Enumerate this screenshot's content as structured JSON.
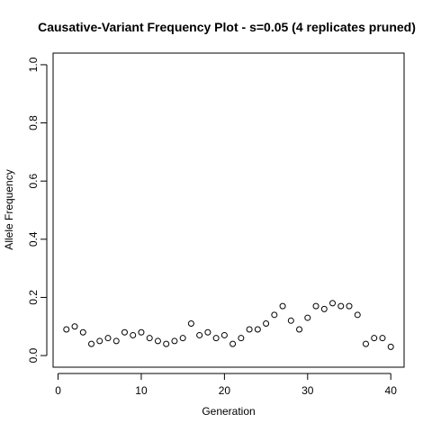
{
  "chart_data": {
    "type": "scatter",
    "title": "Causative-Variant Frequency Plot - s=0.05 (4 replicates pruned)",
    "xlabel": "Generation",
    "ylabel": "Allele Frequency",
    "xlim": [
      -0.6,
      41.6
    ],
    "ylim": [
      -0.04,
      1.04
    ],
    "xticks": [
      0,
      10,
      20,
      30,
      40
    ],
    "yticks": [
      0.0,
      0.2,
      0.4,
      0.6,
      0.8,
      1.0
    ],
    "xtick_labels": [
      "0",
      "10",
      "20",
      "30",
      "40"
    ],
    "ytick_labels": [
      "0.0",
      "0.2",
      "0.4",
      "0.6",
      "0.8",
      "1.0"
    ],
    "grid": false,
    "marker": "open-circle",
    "color": "#000000",
    "x": [
      1,
      2,
      3,
      4,
      5,
      6,
      7,
      8,
      9,
      10,
      11,
      12,
      13,
      14,
      15,
      16,
      17,
      18,
      19,
      20,
      21,
      22,
      23,
      24,
      25,
      26,
      27,
      28,
      29,
      30,
      31,
      32,
      33,
      34,
      35,
      36,
      37,
      38,
      39,
      40
    ],
    "y": [
      0.09,
      0.1,
      0.08,
      0.04,
      0.05,
      0.06,
      0.05,
      0.08,
      0.07,
      0.08,
      0.06,
      0.05,
      0.04,
      0.05,
      0.06,
      0.11,
      0.07,
      0.08,
      0.06,
      0.07,
      0.04,
      0.06,
      0.09,
      0.09,
      0.11,
      0.14,
      0.17,
      0.12,
      0.09,
      0.13,
      0.17,
      0.16,
      0.18,
      0.17,
      0.17,
      0.14,
      0.04,
      0.06,
      0.06,
      0.03
    ]
  }
}
